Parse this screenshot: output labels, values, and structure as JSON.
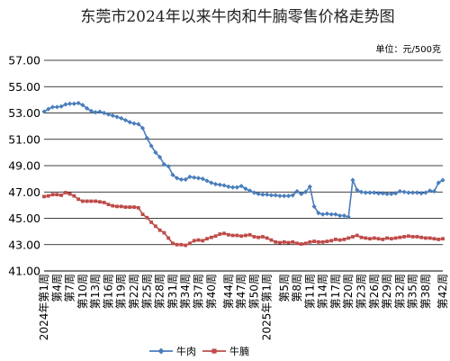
{
  "chart_data": {
    "type": "line",
    "title": "东莞市2024年以来牛肉和牛腩零售价格走势图",
    "unit_label": "单位：元/500克",
    "ylim": [
      41.0,
      57.0
    ],
    "y_ticks": [
      "57.00",
      "55.00",
      "53.00",
      "51.00",
      "49.00",
      "47.00",
      "45.00",
      "43.00",
      "41.00"
    ],
    "grid": true,
    "legend_position": "bottom",
    "x_labels": [
      "2024年第1周",
      "第4周",
      "第7周",
      "第10周",
      "第13周",
      "第16周",
      "第19周",
      "第22周",
      "第25周",
      "第28周",
      "第31周",
      "第34周",
      "第37周",
      "第40周",
      "第44周",
      "第47周",
      "第50周",
      "2025年第1周",
      "第5周",
      "第8周",
      "第11周",
      "第14周",
      "第17周",
      "第20周",
      "第23周",
      "第26周",
      "第29周",
      "第32周",
      "第35周",
      "第38周",
      "第42周"
    ],
    "x_label_positions": [
      0,
      3,
      6,
      9,
      12,
      15,
      18,
      21,
      24,
      27,
      30,
      33,
      36,
      39,
      43,
      46,
      49,
      52,
      56,
      59,
      62,
      65,
      68,
      71,
      74,
      77,
      80,
      83,
      86,
      89,
      93
    ],
    "x_count": 94,
    "series": [
      {
        "name": "牛肉",
        "color": "#4A7EBB",
        "marker": "diamond",
        "values": [
          53.1,
          53.3,
          53.45,
          53.45,
          53.5,
          53.65,
          53.7,
          53.7,
          53.75,
          53.6,
          53.35,
          53.15,
          53.05,
          53.1,
          53.0,
          52.9,
          52.8,
          52.7,
          52.6,
          52.45,
          52.3,
          52.2,
          52.15,
          51.85,
          51.1,
          50.5,
          50.0,
          49.65,
          49.1,
          48.95,
          48.3,
          48.05,
          47.95,
          47.95,
          48.15,
          48.1,
          48.05,
          48.0,
          47.85,
          47.7,
          47.6,
          47.55,
          47.5,
          47.4,
          47.35,
          47.35,
          47.45,
          47.25,
          47.1,
          46.95,
          46.85,
          46.8,
          46.8,
          46.75,
          46.75,
          46.7,
          46.7,
          46.7,
          46.75,
          47.05,
          46.85,
          47.0,
          47.4,
          45.9,
          45.4,
          45.3,
          45.35,
          45.3,
          45.3,
          45.2,
          45.2,
          45.1,
          47.9,
          47.15,
          47.0,
          46.95,
          46.95,
          46.95,
          46.9,
          46.9,
          46.85,
          46.85,
          46.9,
          47.05,
          47.0,
          46.95,
          46.95,
          46.95,
          46.9,
          46.95,
          47.1,
          47.05,
          47.7,
          47.9
        ]
      },
      {
        "name": "牛腩",
        "color": "#BE4B48",
        "marker": "square",
        "values": [
          46.65,
          46.7,
          46.8,
          46.8,
          46.75,
          46.95,
          46.85,
          46.7,
          46.45,
          46.3,
          46.3,
          46.3,
          46.3,
          46.25,
          46.2,
          46.05,
          45.95,
          45.9,
          45.9,
          45.85,
          45.85,
          45.85,
          45.8,
          45.3,
          45.05,
          44.7,
          44.4,
          44.1,
          43.9,
          43.5,
          43.1,
          43.0,
          43.0,
          42.95,
          43.1,
          43.3,
          43.35,
          43.3,
          43.45,
          43.55,
          43.65,
          43.8,
          43.85,
          43.75,
          43.7,
          43.7,
          43.65,
          43.7,
          43.75,
          43.6,
          43.55,
          43.6,
          43.5,
          43.35,
          43.2,
          43.15,
          43.2,
          43.15,
          43.2,
          43.1,
          43.05,
          43.1,
          43.2,
          43.25,
          43.2,
          43.2,
          43.25,
          43.3,
          43.4,
          43.35,
          43.4,
          43.5,
          43.6,
          43.7,
          43.55,
          43.5,
          43.45,
          43.5,
          43.45,
          43.4,
          43.5,
          43.45,
          43.5,
          43.55,
          43.6,
          43.65,
          43.6,
          43.6,
          43.55,
          43.5,
          43.5,
          43.45,
          43.4,
          43.45
        ]
      }
    ]
  }
}
